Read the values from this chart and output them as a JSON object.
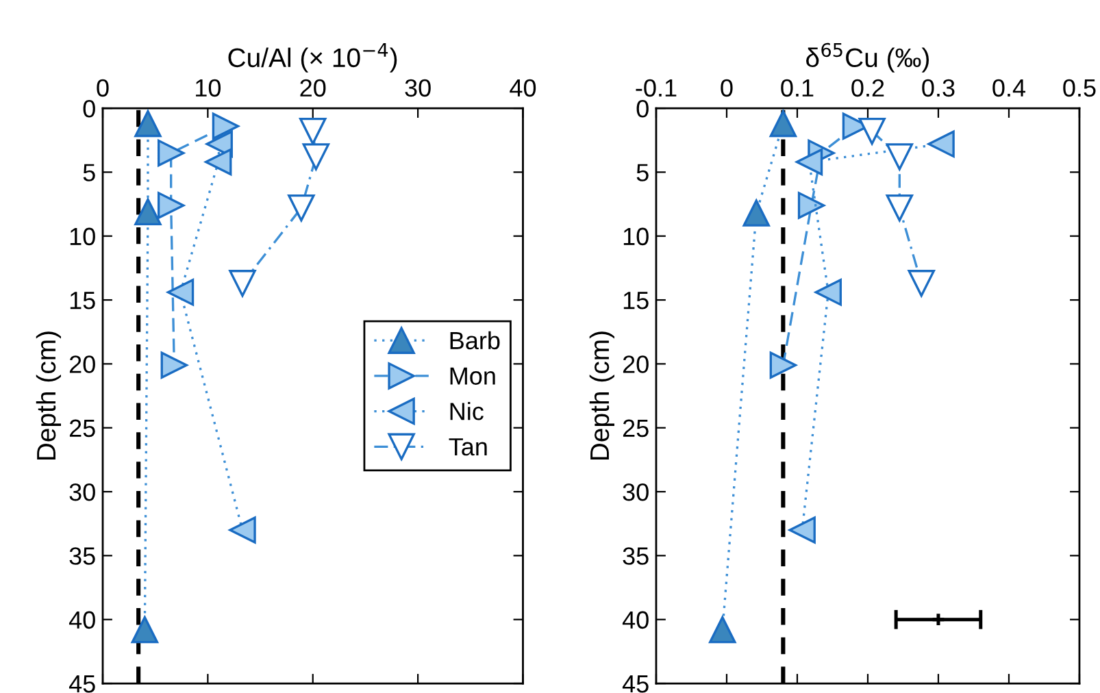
{
  "chart_data": [
    {
      "type": "line",
      "xlabel": "Cu/Al (× 10$^{−4}$)",
      "ylabel": "Depth (cm)",
      "xlim": [
        0,
        40
      ],
      "xticks": [
        0,
        10,
        20,
        30,
        40
      ],
      "ylim": [
        45,
        0
      ],
      "yticks": [
        0,
        5,
        10,
        15,
        20,
        25,
        30,
        35,
        40,
        45
      ],
      "grid": false,
      "legend": "right",
      "series": [
        {
          "name": "Barb",
          "color": "#3a86bd",
          "marker": "triangle-up",
          "line_style": "dotted",
          "x": [
            4.3,
            4.3,
            4.0
          ],
          "values": [
            1.2,
            8.1,
            40.8
          ]
        },
        {
          "name": "Mon",
          "color": "#9ccaf0",
          "marker": "triangle-right",
          "line_style": "dashed",
          "x": [
            11.7,
            6.5,
            6.5,
            6.8
          ],
          "values": [
            1.4,
            3.5,
            7.6,
            20.1
          ]
        },
        {
          "name": "Nic",
          "color": "#9ccaf0",
          "marker": "triangle-left",
          "line_style": "dotted",
          "x": [
            11.1,
            11.0,
            7.4,
            13.3
          ],
          "values": [
            2.8,
            4.2,
            14.4,
            33.0
          ]
        },
        {
          "name": "Tan",
          "color": "#1a6cc2",
          "marker": "triangle-down-open",
          "line_style": "dashdot",
          "x": [
            20.0,
            20.3,
            18.9,
            13.3
          ],
          "values": [
            1.8,
            3.8,
            7.8,
            13.7
          ]
        }
      ],
      "ref_lines": [
        {
          "axis": "x",
          "value": 3.4,
          "color": "#000000",
          "line_style": "dashed"
        }
      ]
    },
    {
      "type": "line",
      "xlabel": "δ$^{65}$Cu (‰)",
      "ylabel": "Depth (cm)",
      "xlim": [
        -0.1,
        0.5
      ],
      "xticks": [
        -0.1,
        0,
        0.1,
        0.2,
        0.3,
        0.4,
        0.5
      ],
      "ylim": [
        45,
        0
      ],
      "yticks": [
        0,
        5,
        10,
        15,
        20,
        25,
        30,
        35,
        40,
        45
      ],
      "grid": false,
      "series": [
        {
          "color": "#3a86bd",
          "marker": "triangle-up",
          "line_style": "dotted",
          "x": [
            0.08,
            0.042,
            -0.006
          ],
          "values": [
            1.2,
            8.2,
            40.8
          ]
        },
        {
          "color": "#9ccaf0",
          "marker": "triangle-right",
          "line_style": "dashed",
          "x": [
            0.183,
            0.134,
            0.12,
            0.08
          ],
          "values": [
            1.4,
            3.5,
            7.6,
            20.1
          ]
        },
        {
          "color": "#9ccaf0",
          "marker": "triangle-left",
          "line_style": "dotted",
          "x": [
            0.304,
            0.117,
            0.144,
            0.107
          ],
          "values": [
            2.8,
            4.2,
            14.4,
            33.0
          ]
        },
        {
          "color": "#1a6cc2",
          "marker": "triangle-down-open",
          "line_style": "dashdot",
          "x": [
            0.206,
            0.245,
            0.245,
            0.276
          ],
          "values": [
            1.8,
            3.8,
            7.8,
            13.7
          ]
        },
        {
          "type": "scatter",
          "color": "#000000",
          "marker": "cross",
          "x": [
            0.3
          ],
          "values": [
            40
          ],
          "xerrors": [
            0.06
          ]
        }
      ],
      "ref_lines": [
        {
          "axis": "x",
          "value": 0.08,
          "color": "#000000",
          "line_style": "dashed"
        }
      ]
    }
  ]
}
